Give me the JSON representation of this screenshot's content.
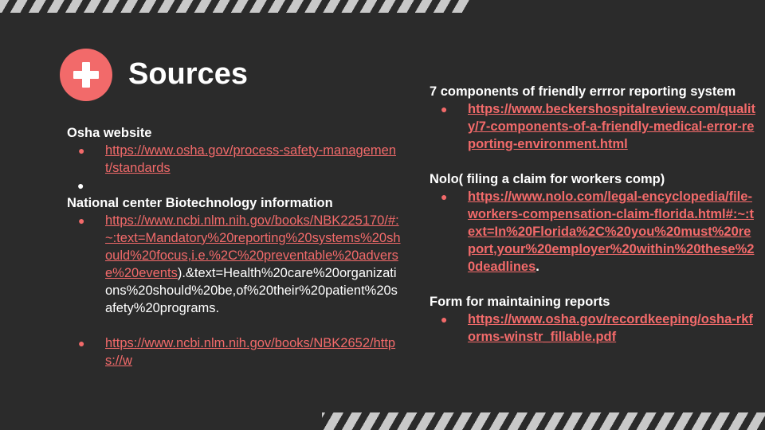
{
  "title": "Sources",
  "left": {
    "osha_heading": "Osha website",
    "osha_link": "https://www.osha.gov/process-safety-management/standards",
    "ncbi_heading": "National center Biotechnology information",
    "ncbi_link1": "https://www.ncbi.nlm.nih.gov/books/NBK225170/#:~:text=Mandatory%20reporting%20systems%20should%20focus,i.e.%2C%20preventable%20adverse%20events",
    "ncbi_link1_tail": ").&text=Health%20care%20organizations%20should%20be,of%20their%20patient%20safety%20programs.",
    "ncbi_link2": "https://www.ncbi.nlm.nih.gov/books/NBK2652/https://w"
  },
  "right": {
    "beckers_heading": "7 components of friendly errror reporting system",
    "beckers_link": "https://www.beckershospitalreview.com/quality/7-components-of-a-friendly-medical-error-reporting-environment.html",
    "nolo_heading": "Nolo( filing a claim for workers comp)",
    "nolo_link": "https://www.nolo.com/legal-encyclopedia/file-workers-compensation-claim-florida.html#:~:text=In%20Florida%2C%20you%20must%20report,your%20employer%20within%20these%20deadlines",
    "nolo_tail": ".",
    "form_heading": "Form for maintaining reports",
    "form_link": "https://www.osha.gov/recordkeeping/osha-rkforms-winstr_fillable.pdf"
  },
  "colors": {
    "background": "#2b2b2b",
    "accent": "#f26a6a",
    "text": "#ffffff"
  },
  "icons": {
    "badge": "plus-icon",
    "bullet": "bullet-dot-icon"
  }
}
